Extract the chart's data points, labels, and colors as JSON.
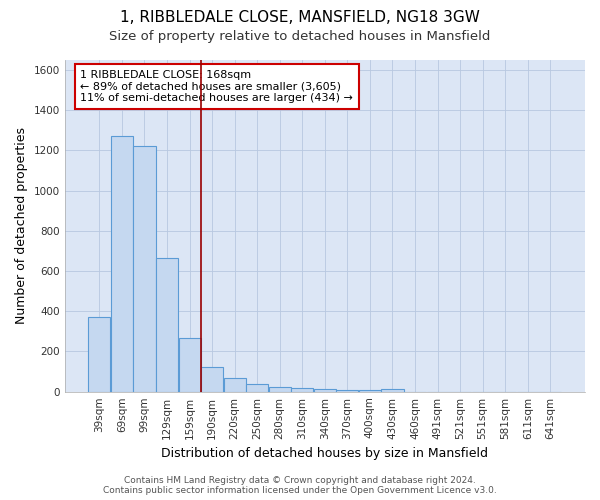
{
  "title": "1, RIBBLEDALE CLOSE, MANSFIELD, NG18 3GW",
  "subtitle": "Size of property relative to detached houses in Mansfield",
  "xlabel": "Distribution of detached houses by size in Mansfield",
  "ylabel": "Number of detached properties",
  "bar_labels": [
    "39sqm",
    "69sqm",
    "99sqm",
    "129sqm",
    "159sqm",
    "190sqm",
    "220sqm",
    "250sqm",
    "280sqm",
    "310sqm",
    "340sqm",
    "370sqm",
    "400sqm",
    "430sqm",
    "460sqm",
    "491sqm",
    "521sqm",
    "551sqm",
    "581sqm",
    "611sqm",
    "641sqm"
  ],
  "bar_values": [
    370,
    1270,
    1220,
    665,
    265,
    125,
    70,
    38,
    23,
    18,
    13,
    9,
    6,
    15,
    0,
    0,
    0,
    0,
    0,
    0,
    0
  ],
  "bar_color": "#c5d8f0",
  "bar_edge_color": "#5b9bd5",
  "background_color": "#dce6f5",
  "grid_color": "#b8c8e0",
  "ylim": [
    0,
    1650
  ],
  "yticks": [
    0,
    200,
    400,
    600,
    800,
    1000,
    1200,
    1400,
    1600
  ],
  "vline_x": 4.5,
  "vline_color": "#990000",
  "annotation_text": "1 RIBBLEDALE CLOSE: 168sqm\n← 89% of detached houses are smaller (3,605)\n11% of semi-detached houses are larger (434) →",
  "annotation_box_color": "#ffffff",
  "annotation_edge_color": "#cc0000",
  "footer_line1": "Contains HM Land Registry data © Crown copyright and database right 2024.",
  "footer_line2": "Contains public sector information licensed under the Open Government Licence v3.0.",
  "title_fontsize": 11,
  "subtitle_fontsize": 9.5,
  "axis_label_fontsize": 9,
  "tick_fontsize": 7.5,
  "annotation_fontsize": 8,
  "footer_fontsize": 6.5
}
